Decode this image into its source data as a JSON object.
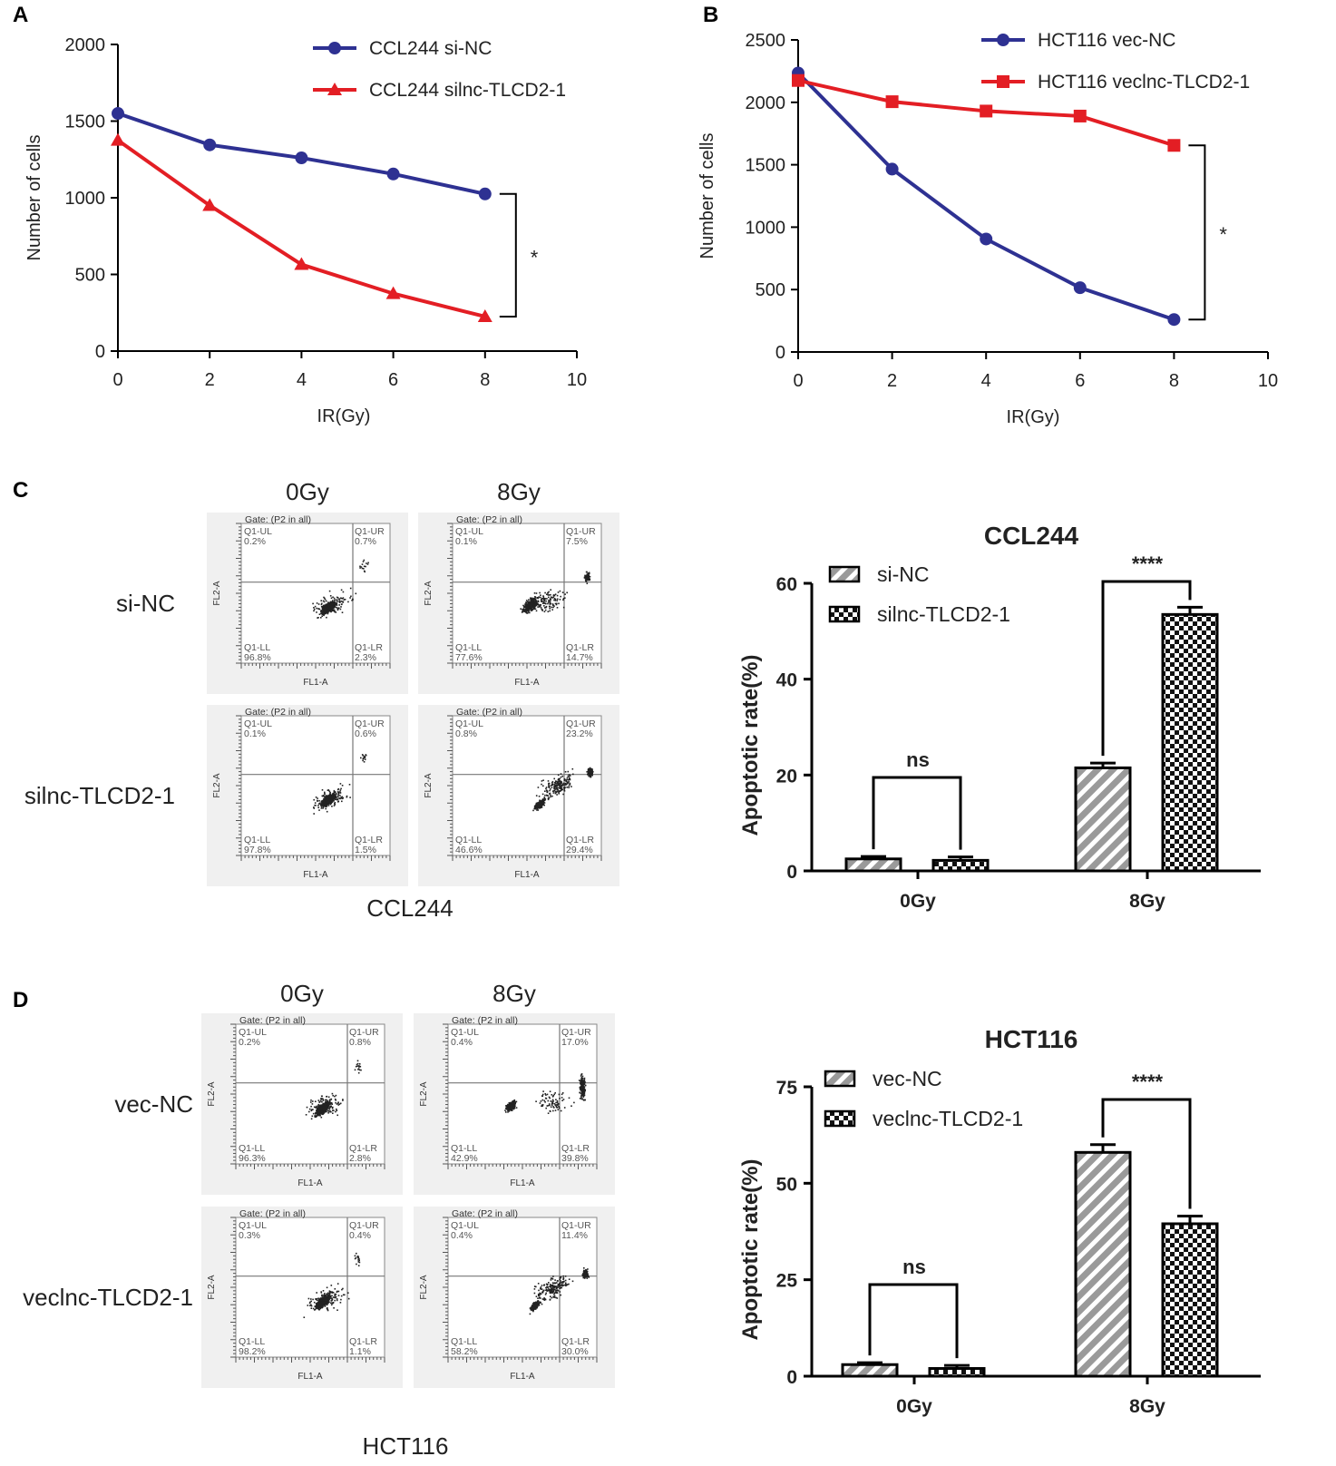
{
  "panel_labels": [
    "A",
    "B",
    "C",
    "D"
  ],
  "chart_data": [
    {
      "id": "A",
      "type": "line",
      "xlabel": "IR(Gy)",
      "ylabel": "Number of cells",
      "xlim": [
        0,
        10
      ],
      "ylim": [
        0,
        2000
      ],
      "xticks": [
        "0",
        "2",
        "4",
        "6",
        "8",
        "10"
      ],
      "yticks": [
        "0",
        "500",
        "1000",
        "1500",
        "2000"
      ],
      "x": [
        0,
        2,
        4,
        6,
        8
      ],
      "series": [
        {
          "name": "CCL244 si-NC",
          "marker": "circle",
          "color": "#2e3192",
          "values": [
            1550,
            1345,
            1260,
            1155,
            1025
          ]
        },
        {
          "name": "CCL244 silnc-TLCD2-1",
          "marker": "triangle",
          "color": "#e31e24",
          "values": [
            1375,
            950,
            565,
            375,
            225
          ]
        }
      ],
      "significance": "*",
      "legend": "top-right"
    },
    {
      "id": "B",
      "type": "line",
      "xlabel": "IR(Gy)",
      "ylabel": "Number of cells",
      "xlim": [
        0,
        10
      ],
      "ylim": [
        0,
        2500
      ],
      "xticks": [
        "0",
        "2",
        "4",
        "6",
        "8",
        "10"
      ],
      "yticks": [
        "0",
        "500",
        "1000",
        "1500",
        "2000",
        "2500"
      ],
      "x": [
        0,
        2,
        4,
        6,
        8
      ],
      "series": [
        {
          "name": "HCT116 vec-NC",
          "marker": "circle",
          "color": "#2e3192",
          "values": [
            2235,
            1465,
            905,
            515,
            260
          ]
        },
        {
          "name": "HCT116 veclnc-TLCD2-1",
          "marker": "square",
          "color": "#e31e24",
          "values": [
            2175,
            2005,
            1930,
            1890,
            1655
          ]
        }
      ],
      "significance": "*",
      "legend": "top-right"
    },
    {
      "id": "C-bar",
      "type": "bar",
      "title": "CCL244",
      "ylabel": "Apoptotic rate(%)",
      "categories": [
        "0Gy",
        "8Gy"
      ],
      "ylim": [
        0,
        60
      ],
      "yticks": [
        "0",
        "20",
        "40",
        "60"
      ],
      "series": [
        {
          "name": "si-NC",
          "pattern": "stripes",
          "values": [
            2.5,
            21.5
          ],
          "errors": [
            0.5,
            1.0
          ]
        },
        {
          "name": "silnc-TLCD2-1",
          "pattern": "checker",
          "values": [
            2.2,
            53.5
          ],
          "errors": [
            0.7,
            1.5
          ]
        }
      ],
      "significance": [
        "ns",
        "****"
      ],
      "legend": "top-left"
    },
    {
      "id": "D-bar",
      "type": "bar",
      "title": "HCT116",
      "ylabel": "Apoptotic rate(%)",
      "categories": [
        "0Gy",
        "8Gy"
      ],
      "ylim": [
        0,
        75
      ],
      "yticks": [
        "0",
        "25",
        "50",
        "75"
      ],
      "series": [
        {
          "name": "vec-NC",
          "pattern": "stripes",
          "values": [
            3.0,
            58.0
          ],
          "errors": [
            0.5,
            2.0
          ]
        },
        {
          "name": "veclnc-TLCD2-1",
          "pattern": "checker",
          "values": [
            2.0,
            39.5
          ],
          "errors": [
            0.8,
            2.0
          ]
        }
      ],
      "significance": [
        "ns",
        "****"
      ],
      "legend": "top-left"
    }
  ],
  "flow": [
    {
      "id": "C",
      "col_labels": [
        "0Gy",
        "8Gy"
      ],
      "row_labels": [
        "si-NC",
        "silnc-TLCD2-1"
      ],
      "caption": "CCL244",
      "plots": [
        {
          "UL": "0.2%",
          "UR": "0.7%",
          "LL": "96.8%",
          "LR": "2.3%",
          "cluster": "main"
        },
        {
          "UL": "0.1%",
          "UR": "7.5%",
          "LL": "77.6%",
          "LR": "14.7%",
          "cluster": "shift"
        },
        {
          "UL": "0.1%",
          "UR": "0.6%",
          "LL": "97.8%",
          "LR": "1.5%",
          "cluster": "main"
        },
        {
          "UL": "0.8%",
          "UR": "23.2%",
          "LL": "46.6%",
          "LR": "29.4%",
          "cluster": "diag"
        }
      ]
    },
    {
      "id": "D",
      "col_labels": [
        "0Gy",
        "8Gy"
      ],
      "row_labels": [
        "vec-NC",
        "veclnc-TLCD2-1"
      ],
      "caption": "HCT116",
      "plots": [
        {
          "UL": "0.2%",
          "UR": "0.8%",
          "LL": "96.3%",
          "LR": "2.8%",
          "cluster": "main"
        },
        {
          "UL": "0.4%",
          "UR": "17.0%",
          "LL": "42.9%",
          "LR": "39.8%",
          "cluster": "split"
        },
        {
          "UL": "0.3%",
          "UR": "0.4%",
          "LL": "98.2%",
          "LR": "1.1%",
          "cluster": "main"
        },
        {
          "UL": "0.4%",
          "UR": "11.4%",
          "LL": "58.2%",
          "LR": "30.0%",
          "cluster": "diag"
        }
      ]
    }
  ],
  "flow_text": {
    "gate": "Gate: (P2 in all)",
    "q_ul": "Q1-UL",
    "q_ur": "Q1-UR",
    "q_ll": "Q1-LL",
    "q_lr": "Q1-LR",
    "xaxis": "FL1-A",
    "yaxis": "FL2-A"
  },
  "colors": {
    "blue": "#2e3192",
    "red": "#e31e24",
    "bar_fill": "#a8a8a8",
    "flow_bg": "#f0f0f0"
  }
}
